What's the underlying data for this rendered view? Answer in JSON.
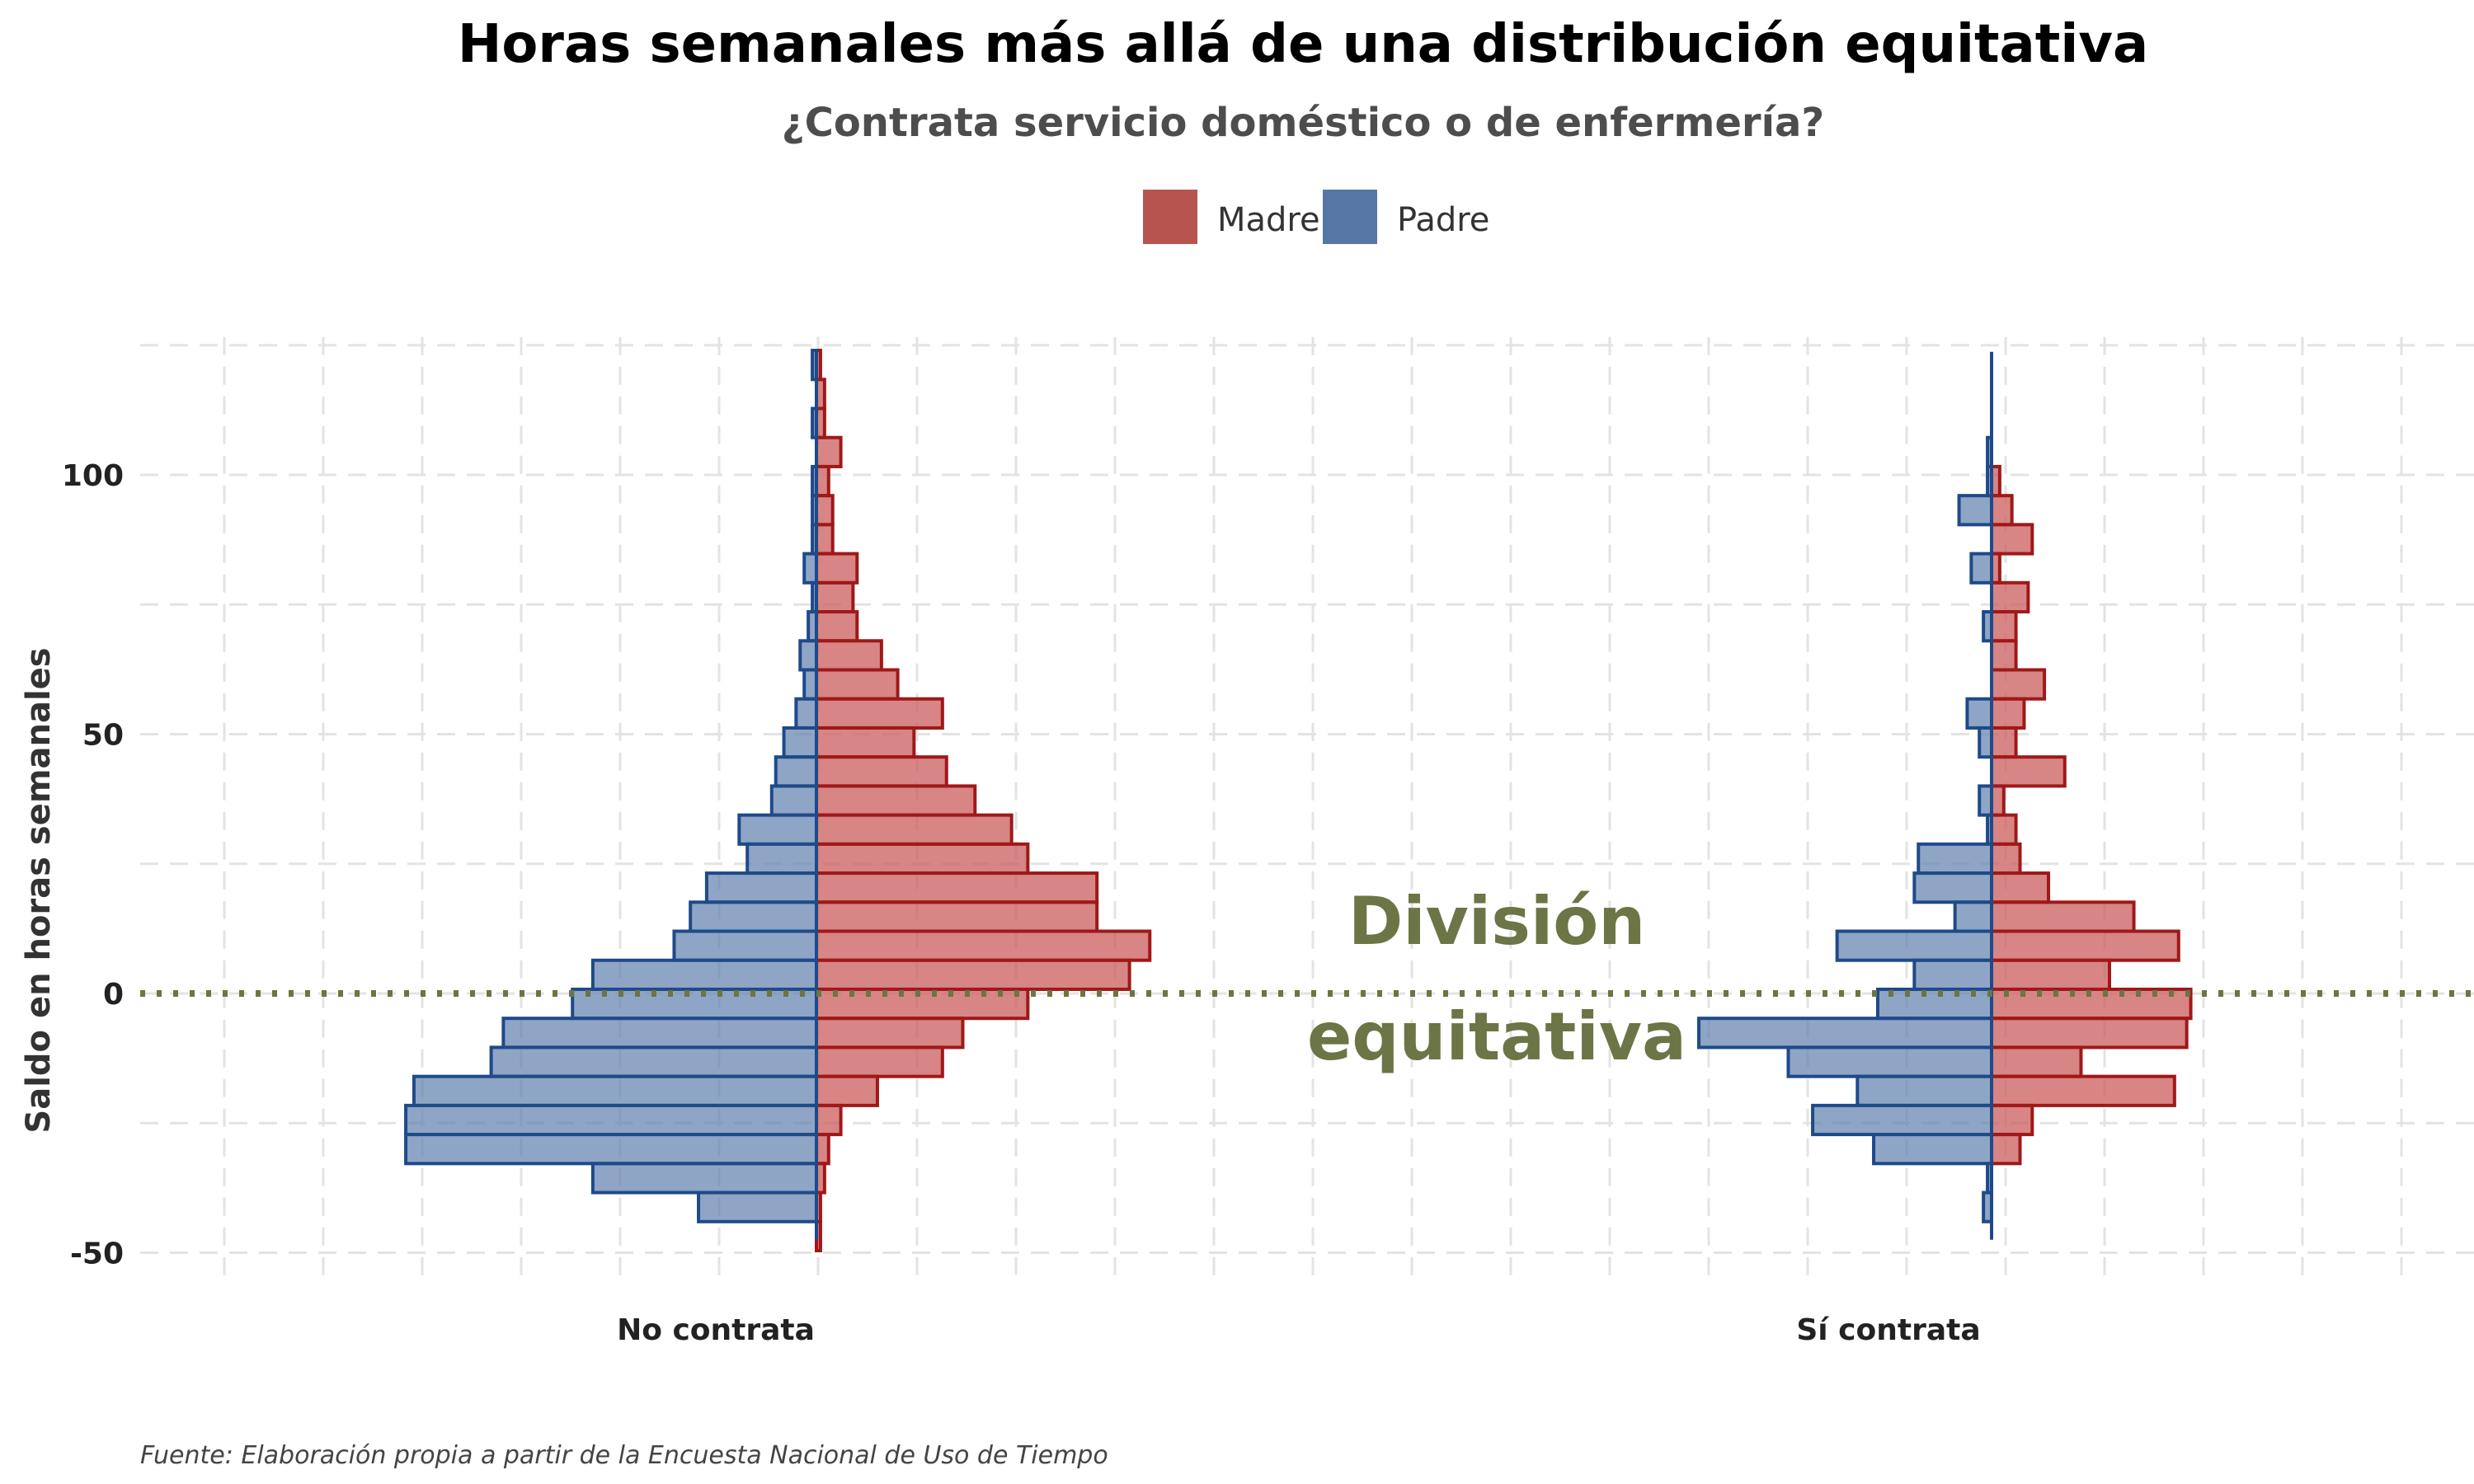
{
  "chart_data": {
    "type": "bar",
    "orientation": "horizontal-mirrored",
    "title": "Horas semanales más allá de una distribución equitativa",
    "subtitle": "¿Contrata servicio doméstico o de enfermería?",
    "ylabel": "Saldo en horas semanales",
    "ylim": [
      -55,
      125
    ],
    "yticks": [
      100,
      50,
      0,
      -50
    ],
    "bin_width": 5.6,
    "caption": "Fuente: Elaboración propia a partir de la Encuesta Nacional de Uso de Tiempo",
    "annotation": {
      "text_line1": "División",
      "text_line2": "equitativa",
      "y": 0
    },
    "reference_line": {
      "y": 0,
      "color": "#6b7545",
      "style": "dotted"
    },
    "legend": {
      "position": "top",
      "items": [
        {
          "label": "Madre",
          "color": "#b85450"
        },
        {
          "label": "Padre",
          "color": "#5676a6"
        }
      ]
    },
    "panels": [
      {
        "label": "No contrata",
        "bin_centers": [
          121.2,
          115.6,
          110.0,
          104.4,
          98.8,
          93.2,
          87.6,
          82.0,
          76.4,
          70.8,
          65.2,
          59.6,
          54.0,
          48.4,
          42.8,
          37.2,
          31.6,
          26.0,
          20.4,
          14.8,
          9.2,
          3.6,
          -2.0,
          -7.6,
          -13.2,
          -18.8,
          -24.4,
          -30.0,
          -35.6,
          -41.2,
          -46.8
        ],
        "series": [
          {
            "name": "Madre",
            "values": [
              1,
              2,
              2,
              6,
              3,
              4,
              4,
              10,
              9,
              10,
              16,
              20,
              31,
              24,
              32,
              39,
              48,
              52,
              69,
              69,
              82,
              77,
              52,
              36,
              31,
              15,
              6,
              3,
              2,
              1,
              1
            ]
          },
          {
            "name": "Padre",
            "values": [
              1,
              0,
              1,
              0,
              1,
              1,
              1,
              3,
              1,
              2,
              4,
              3,
              5,
              8,
              10,
              11,
              19,
              17,
              27,
              31,
              35,
              55,
              60,
              77,
              80,
              99,
              101,
              101,
              55,
              29,
              0
            ]
          }
        ]
      },
      {
        "label": "Sí contrata",
        "bin_centers": [
          121.2,
          115.6,
          110.0,
          104.4,
          98.8,
          93.2,
          87.6,
          82.0,
          76.4,
          70.8,
          65.2,
          59.6,
          54.0,
          48.4,
          42.8,
          37.2,
          31.6,
          26.0,
          20.4,
          14.8,
          9.2,
          3.6,
          -2.0,
          -7.6,
          -13.2,
          -18.8,
          -24.4,
          -30.0,
          -35.6,
          -41.2,
          -46.8
        ],
        "series": [
          {
            "name": "Madre",
            "values": [
              0,
              0,
              0,
              0,
              2,
              5,
              10,
              2,
              9,
              6,
              6,
              13,
              8,
              6,
              18,
              3,
              6,
              7,
              14,
              35,
              46,
              29,
              49,
              48,
              22,
              45,
              10,
              7,
              0,
              0,
              0
            ]
          },
          {
            "name": "Padre",
            "values": [
              0,
              0,
              0,
              1,
              1,
              8,
              0,
              5,
              0,
              2,
              0,
              0,
              6,
              3,
              0,
              3,
              1,
              18,
              19,
              9,
              38,
              19,
              28,
              72,
              50,
              33,
              44,
              29,
              1,
              2,
              0
            ]
          }
        ]
      }
    ]
  }
}
